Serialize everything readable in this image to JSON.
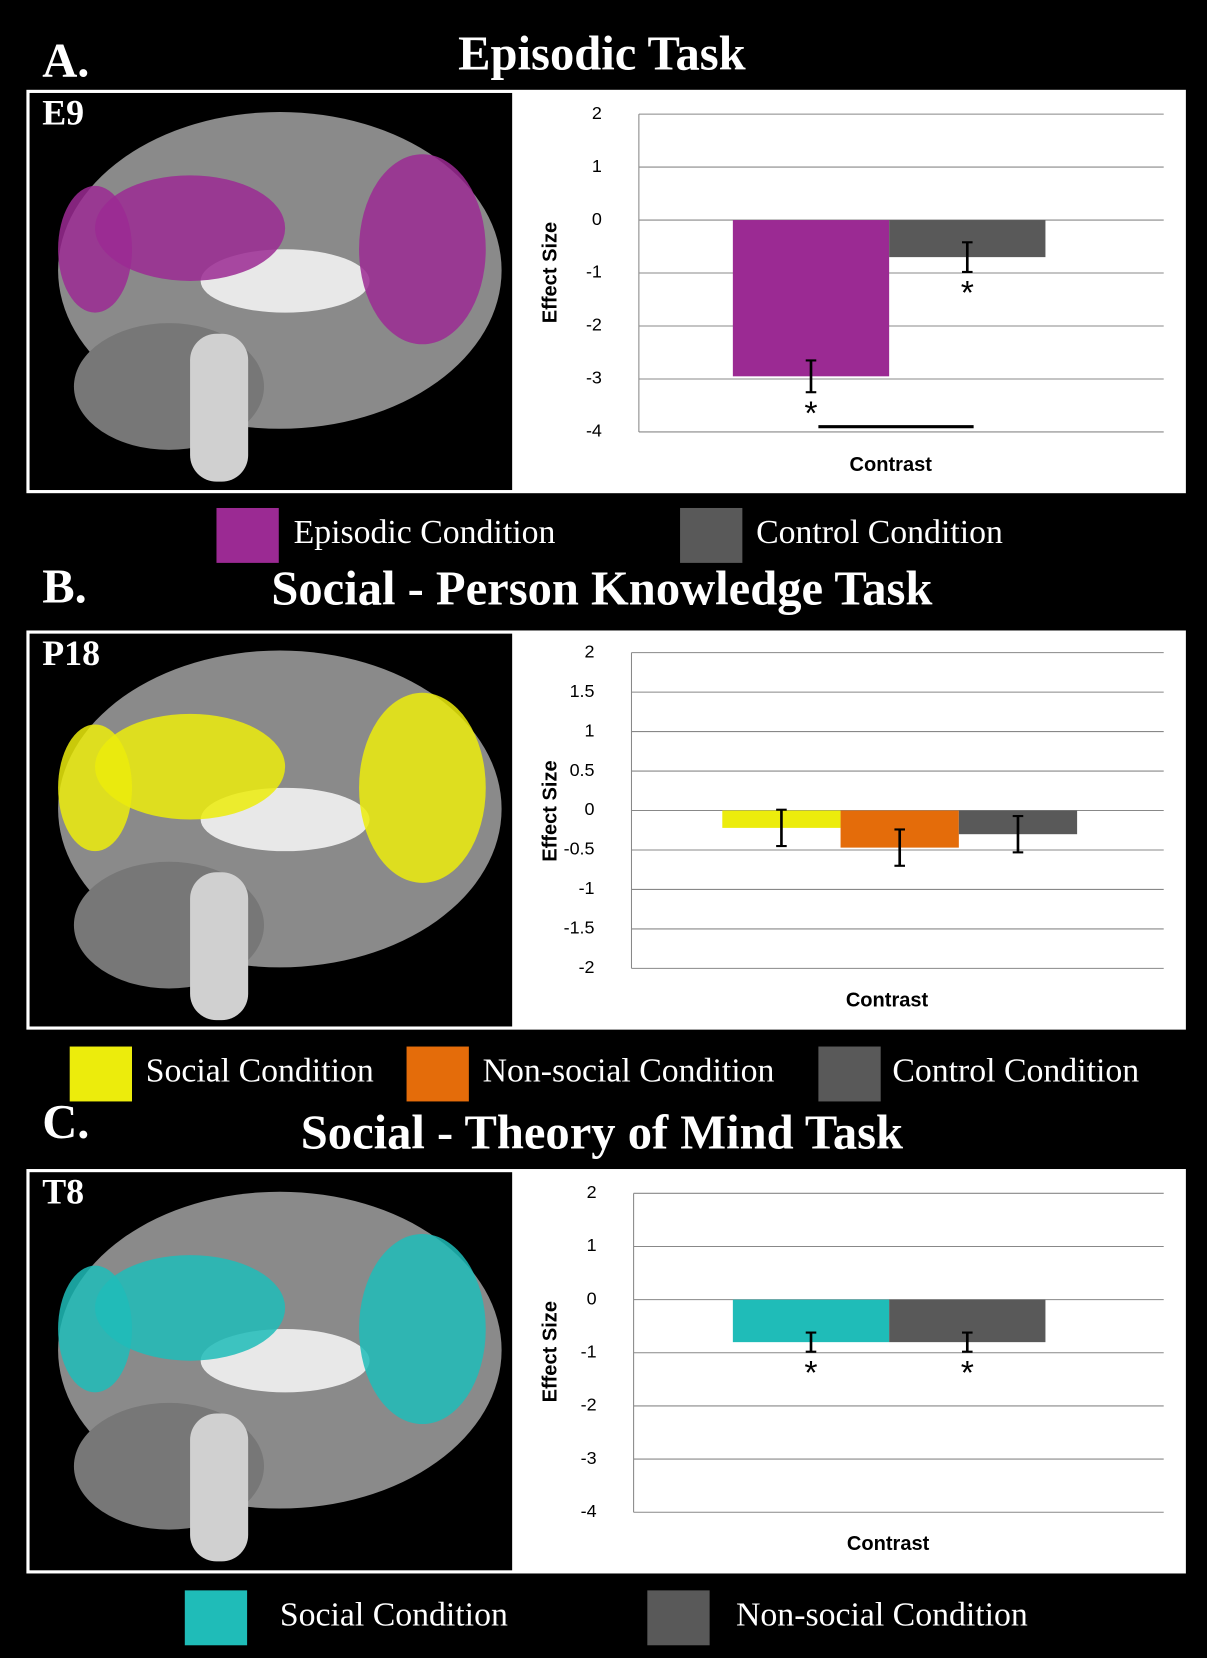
{
  "chart_data": [
    {
      "type": "bar",
      "panel_label": "A.",
      "title": "Episodic Task",
      "region_label": "E9",
      "ylabel": "Effect Size",
      "xlabel": "Contrast",
      "ylim": [
        -4,
        2
      ],
      "yticks": [
        -4,
        -3,
        -2,
        -1,
        0,
        1,
        2
      ],
      "grid": true,
      "series": [
        {
          "name": "Episodic Condition",
          "color": "#9b2a93",
          "values": [
            -2.95
          ],
          "errors": [
            0.3
          ],
          "significance": "*"
        },
        {
          "name": "Control Condition",
          "color": "#595959",
          "values": [
            -0.7
          ],
          "errors": [
            0.28
          ],
          "significance": "*"
        }
      ]
    },
    {
      "type": "bar",
      "panel_label": "B.",
      "title": "Social - Person Knowledge Task",
      "region_label": "P18",
      "ylabel": "Effect Size",
      "xlabel": "Contrast",
      "ylim": [
        -2,
        2
      ],
      "yticks": [
        -2,
        -1.5,
        -1,
        -0.5,
        0,
        0.5,
        1,
        1.5,
        2
      ],
      "grid": true,
      "series": [
        {
          "name": "Social Condition",
          "color": "#ecec0c",
          "values": [
            -0.22
          ],
          "errors": [
            0.23
          ]
        },
        {
          "name": "Non-social Condition",
          "color": "#e46c0a",
          "values": [
            -0.47
          ],
          "errors": [
            0.23
          ]
        },
        {
          "name": "Control Condition",
          "color": "#595959",
          "values": [
            -0.3
          ],
          "errors": [
            0.23
          ]
        }
      ]
    },
    {
      "type": "bar",
      "panel_label": "C.",
      "title": "Social - Theory of Mind Task",
      "region_label": "T8",
      "ylabel": "Effect Size",
      "xlabel": "Contrast",
      "ylim": [
        -4,
        2
      ],
      "yticks": [
        -4,
        -3,
        -2,
        -1,
        0,
        1,
        2
      ],
      "grid": true,
      "series": [
        {
          "name": "Social Condition",
          "color": "#1fbcb8",
          "values": [
            -0.8
          ],
          "errors": [
            0.18
          ],
          "significance": "*"
        },
        {
          "name": "Non-social Condition",
          "color": "#595959",
          "values": [
            -0.8
          ],
          "errors": [
            0.18
          ],
          "significance": "*"
        }
      ]
    }
  ]
}
